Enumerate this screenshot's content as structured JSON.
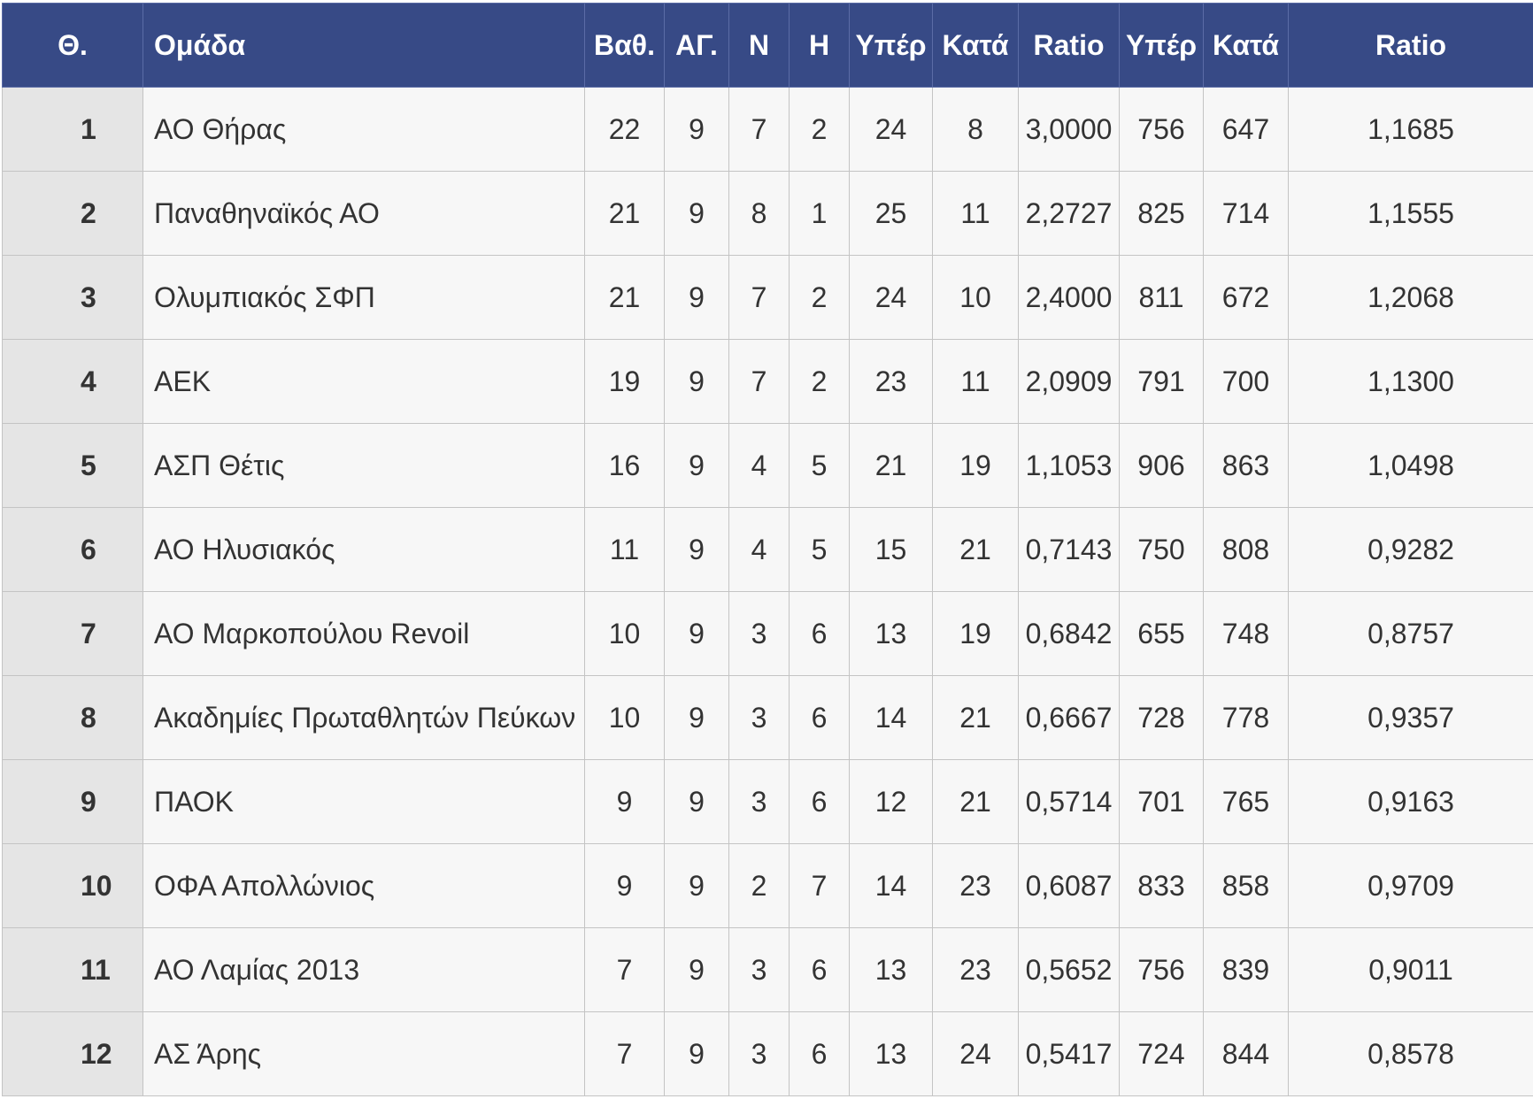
{
  "table": {
    "headers": [
      "Θ.",
      "Ομάδα",
      "Βαθ.",
      "ΑΓ.",
      "Ν",
      "Η",
      "Υπέρ",
      "Κατά",
      "Ratio",
      "Υπέρ",
      "Κατά",
      "Ratio"
    ],
    "rows": [
      [
        "1",
        "ΑΟ Θήρας",
        "22",
        "9",
        "7",
        "2",
        "24",
        "8",
        "3,0000",
        "756",
        "647",
        "1,1685"
      ],
      [
        "2",
        "Παναθηναϊκός ΑΟ",
        "21",
        "9",
        "8",
        "1",
        "25",
        "11",
        "2,2727",
        "825",
        "714",
        "1,1555"
      ],
      [
        "3",
        "Ολυμπιακός ΣΦΠ",
        "21",
        "9",
        "7",
        "2",
        "24",
        "10",
        "2,4000",
        "811",
        "672",
        "1,2068"
      ],
      [
        "4",
        "ΑΕΚ",
        "19",
        "9",
        "7",
        "2",
        "23",
        "11",
        "2,0909",
        "791",
        "700",
        "1,1300"
      ],
      [
        "5",
        "ΑΣΠ Θέτις",
        "16",
        "9",
        "4",
        "5",
        "21",
        "19",
        "1,1053",
        "906",
        "863",
        "1,0498"
      ],
      [
        "6",
        "ΑΟ Ηλυσιακός",
        "11",
        "9",
        "4",
        "5",
        "15",
        "21",
        "0,7143",
        "750",
        "808",
        "0,9282"
      ],
      [
        "7",
        "ΑΟ Μαρκοπούλου Revoil",
        "10",
        "9",
        "3",
        "6",
        "13",
        "19",
        "0,6842",
        "655",
        "748",
        "0,8757"
      ],
      [
        "8",
        "Ακαδημίες Πρωταθλητών Πεύκων",
        "10",
        "9",
        "3",
        "6",
        "14",
        "21",
        "0,6667",
        "728",
        "778",
        "0,9357"
      ],
      [
        "9",
        "ΠΑΟΚ",
        "9",
        "9",
        "3",
        "6",
        "12",
        "21",
        "0,5714",
        "701",
        "765",
        "0,9163"
      ],
      [
        "10",
        "ΟΦΑ Απολλώνιος",
        "9",
        "9",
        "2",
        "7",
        "14",
        "23",
        "0,6087",
        "833",
        "858",
        "0,9709"
      ],
      [
        "11",
        "ΑΟ Λαμίας 2013",
        "7",
        "9",
        "3",
        "6",
        "13",
        "23",
        "0,5652",
        "756",
        "839",
        "0,9011"
      ],
      [
        "12",
        "ΑΣ Άρης",
        "7",
        "9",
        "3",
        "6",
        "13",
        "24",
        "0,5417",
        "724",
        "844",
        "0,8578"
      ]
    ]
  },
  "colors": {
    "header_bg": "#374a86",
    "header_text": "#ffffff",
    "cell_bg": "#f7f7f7",
    "position_col_bg": "#e5e5e5",
    "grid": "#c4c4c4",
    "text": "#333333"
  }
}
